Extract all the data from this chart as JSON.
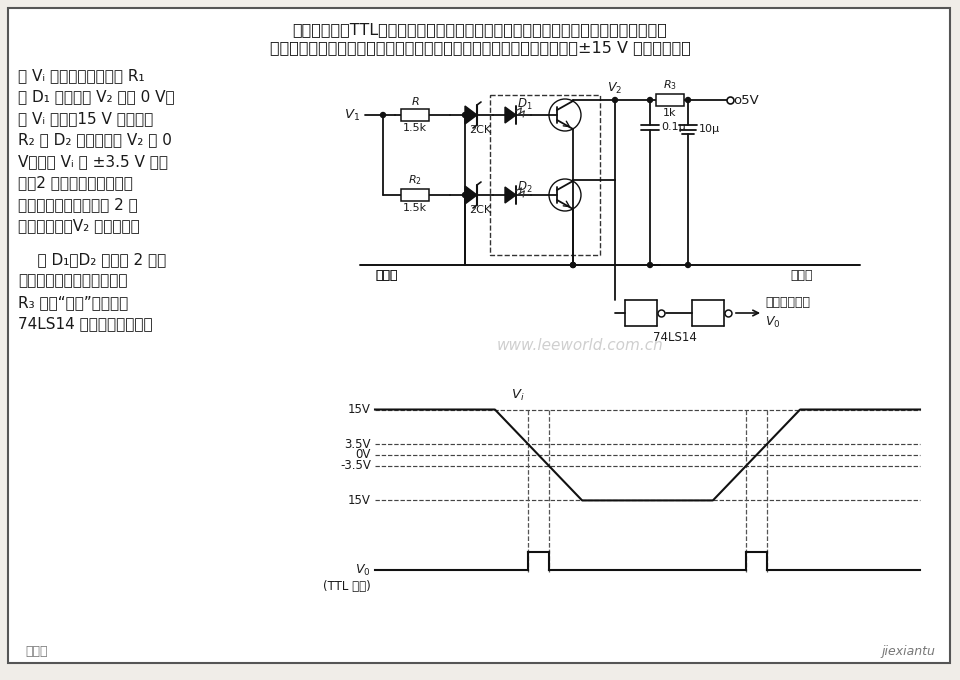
{
  "bg_color": "#f0ede8",
  "border_color": "#444444",
  "text_color": "#1a1a1a",
  "watermark": "www.leeworld.com.cn",
  "bottom_left_text": "林孤园",
  "bottom_right_text": "jiexiantu",
  "top_lines": [
    "本电路能提供TTL电平输出的过零检测。输出脉冲用来驱动计数器，或作为一个控制系",
    "统的输入。波形图给出了输入模拟电压与输出脉冲的关系。本电路能接受±15 V 的扫描信号。"
  ],
  "left_lines_1": [
    "当 Vᵢ 处最大値时，流经 R₁",
    "和 D₁ 的电流使 V₂ 接近 0 V。",
    "而 Vᵢ 到达－15 V 时，流经",
    "R₂ 和 D₂ 的电流也使 V₂ 为 0",
    "V。只有 Vᵢ 在 ±3.5 V 范围",
    "内，2 只发光二极管得不到",
    "足够大的驱动电流，使 2 只",
    "晶体管截止，V₂ 变高电平。"
  ],
  "left_lines_2": [
    "    与 D₁，D₂ 并联的 2 只二",
    "极管起反相保护作用，电阵",
    "R₃ 实现“线或”，门电路",
    "74LS14 对信号进行整形。"
  ]
}
